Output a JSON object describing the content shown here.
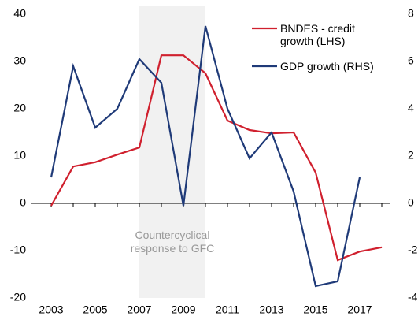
{
  "chart_data": {
    "type": "line",
    "x": [
      2003,
      2004,
      2005,
      2006,
      2007,
      2008,
      2009,
      2010,
      2011,
      2012,
      2013,
      2014,
      2015,
      2016,
      2017,
      2018
    ],
    "series": [
      {
        "name": "BNDES - credit growth (LHS)",
        "color": "#d0202e",
        "values": [
          -0.5,
          7.8,
          8.7,
          10.3,
          11.8,
          31.3,
          31.3,
          27.5,
          17.5,
          15.5,
          14.8,
          15,
          6.5,
          -12,
          -10.2,
          -9.3
        ]
      },
      {
        "name": "GDP growth (RHS)",
        "color": "#1f3a78",
        "axis": "y2",
        "values": [
          1.1,
          5.8,
          3.2,
          4.0,
          6.1,
          5.1,
          -0.1,
          7.5,
          4.0,
          1.9,
          3.0,
          0.5,
          -3.5,
          -3.3,
          1.1,
          null
        ]
      }
    ],
    "xlim": [
      2003,
      2018
    ],
    "xticks": [
      2003,
      2005,
      2007,
      2009,
      2011,
      2013,
      2015,
      2017
    ],
    "ylim": [
      -20,
      40
    ],
    "yticks": [
      -20,
      -10,
      0,
      10,
      20,
      30,
      40
    ],
    "y2lim": [
      -4,
      8
    ],
    "y2ticks": [
      -4,
      -2,
      0,
      2,
      4,
      6,
      8
    ],
    "shaded_span": [
      2007,
      2010
    ],
    "annotation": "Countercyclical response to GFC"
  }
}
